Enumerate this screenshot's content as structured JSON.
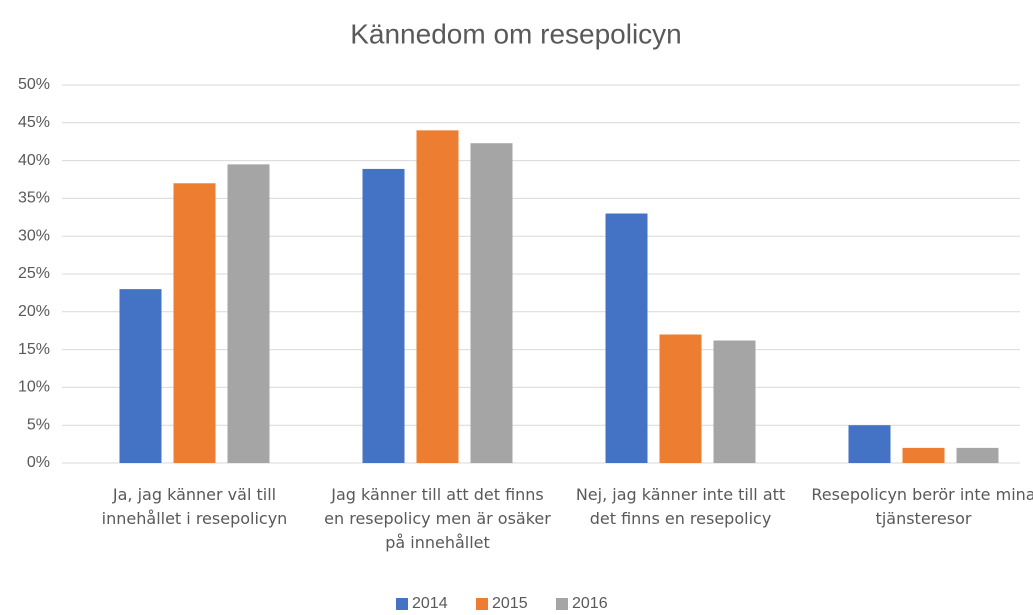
{
  "chart_data": {
    "type": "bar",
    "title": "Kännedom om resepolicyn",
    "categories": [
      "Ja, jag känner väl till innehållet i resepolicyn",
      "Jag känner till att det finns en resepolicy men är osäker på innehållet",
      "Nej, jag känner inte till att det finns en resepolicy",
      "Resepolicyn berör inte mina tjänsteresor"
    ],
    "series": [
      {
        "name": "2014",
        "color": "#4472c4",
        "values": [
          23,
          38.9,
          33,
          5
        ]
      },
      {
        "name": "2015",
        "color": "#ed7d31",
        "values": [
          37,
          44,
          17,
          2
        ]
      },
      {
        "name": "2016",
        "color": "#a5a5a5",
        "values": [
          39.5,
          42.3,
          16.2,
          2
        ]
      }
    ],
    "ylim": [
      0,
      50
    ],
    "yticks": [
      {
        "value": 0,
        "label": "0%"
      },
      {
        "value": 5,
        "label": "5%"
      },
      {
        "value": 10,
        "label": "10%"
      },
      {
        "value": 15,
        "label": "15%"
      },
      {
        "value": 20,
        "label": "20%"
      },
      {
        "value": 25,
        "label": "25%"
      },
      {
        "value": 30,
        "label": "30%"
      },
      {
        "value": 35,
        "label": "35%"
      },
      {
        "value": 40,
        "label": "40%"
      },
      {
        "value": 45,
        "label": "45%"
      },
      {
        "value": 50,
        "label": "50%"
      }
    ],
    "grid": true,
    "legend": "bottom"
  }
}
